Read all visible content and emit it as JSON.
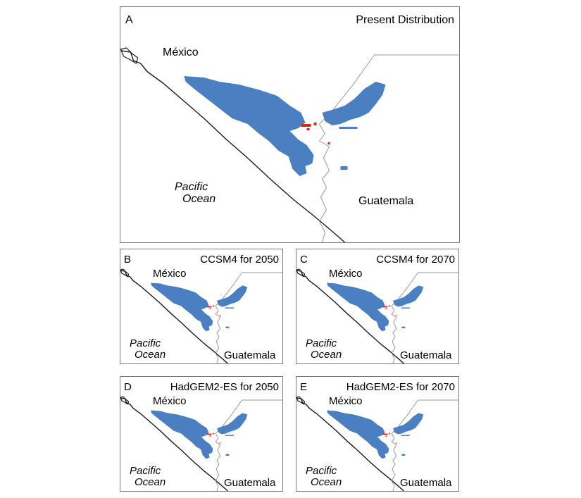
{
  "panels": [
    {
      "letter": "A",
      "title": "Present Distribution",
      "country_north": "México",
      "country_south": "Guatemala",
      "ocean_line1": "Pacific",
      "ocean_line2": "Ocean"
    },
    {
      "letter": "B",
      "title": "CCSM4 for 2050",
      "country_north": "México",
      "country_south": "Guatemala",
      "ocean_line1": "Pacific",
      "ocean_line2": "Ocean"
    },
    {
      "letter": "C",
      "title": "CCSM4 for 2070",
      "country_north": "México",
      "country_south": "Guatemala",
      "ocean_line1": "Pacific",
      "ocean_line2": "Ocean"
    },
    {
      "letter": "D",
      "title": "HadGEM2-ES for 2050",
      "country_north": "México",
      "country_south": "Guatemala",
      "ocean_line1": "Pacific",
      "ocean_line2": "Ocean"
    },
    {
      "letter": "E",
      "title": "HadGEM2-ES for 2070",
      "country_north": "México",
      "country_south": "Guatemala",
      "ocean_line1": "Pacific",
      "ocean_line2": "Ocean"
    }
  ],
  "colors": {
    "distribution": "#4a7fc1",
    "highlight": "#e0241b",
    "coastline": "#1a1a1a",
    "border": "#9a9a9a"
  }
}
